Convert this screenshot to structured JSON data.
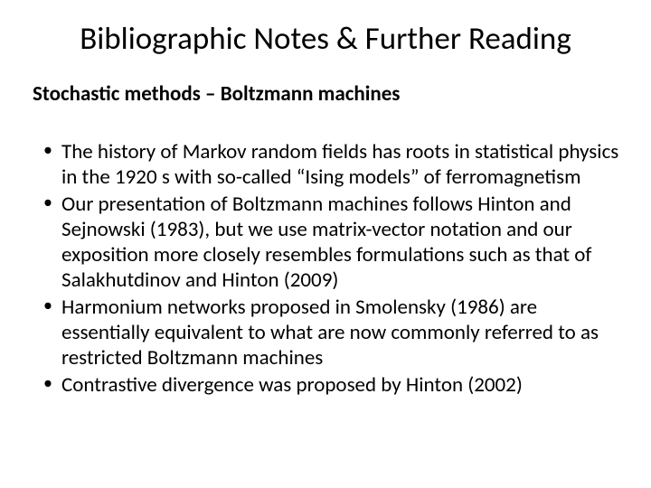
{
  "slide": {
    "title": "Bibliographic Notes & Further Reading",
    "subtitle": "Stochastic methods – Boltzmann machines",
    "bullets": [
      "The history of Markov random fields has roots in statistical physics in the 1920 s with so-called “Ising models” of ferromagnetism",
      "Our presentation of Boltzmann machines follows Hinton and Sejnowski (1983), but we use matrix-vector notation and our exposition more closely resembles formulations such as that of Salakhutdinov and Hinton (2009)",
      "Harmonium networks proposed in Smolensky (1986) are essentially equivalent to what are now commonly referred to as restricted Boltzmann machines",
      "Contrastive divergence was proposed by Hinton (2002)"
    ]
  },
  "style": {
    "background_color": "#ffffff",
    "text_color": "#000000",
    "font_family": "Calibri",
    "title_fontsize": 35,
    "title_weight": 400,
    "subtitle_fontsize": 23,
    "subtitle_weight": 700,
    "bullet_fontsize": 23,
    "bullet_line_height": 1.22
  }
}
